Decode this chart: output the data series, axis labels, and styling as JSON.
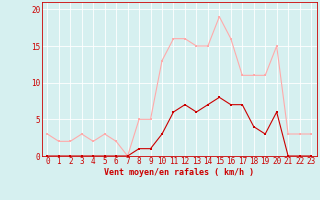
{
  "x": [
    0,
    1,
    2,
    3,
    4,
    5,
    6,
    7,
    8,
    9,
    10,
    11,
    12,
    13,
    14,
    15,
    16,
    17,
    18,
    19,
    20,
    21,
    22,
    23
  ],
  "wind_avg": [
    0,
    0,
    0,
    0,
    0,
    0,
    0,
    0,
    1,
    1,
    3,
    6,
    7,
    6,
    7,
    8,
    7,
    7,
    4,
    3,
    6,
    0,
    0,
    0
  ],
  "wind_gust": [
    3,
    2,
    2,
    3,
    2,
    3,
    2,
    0,
    5,
    5,
    13,
    16,
    16,
    15,
    15,
    19,
    16,
    11,
    11,
    11,
    15,
    3,
    3,
    3
  ],
  "line_avg_color": "#cc0000",
  "line_gust_color": "#ffaaaa",
  "marker_avg_color": "#cc0000",
  "marker_gust_color": "#ffaaaa",
  "bg_color": "#d6f0f0",
  "grid_color": "#ffffff",
  "xlabel": "Vent moyen/en rafales ( km/h )",
  "xlabel_color": "#cc0000",
  "tick_color": "#cc0000",
  "spine_color": "#cc0000",
  "ylim": [
    0,
    21
  ],
  "yticks": [
    0,
    5,
    10,
    15,
    20
  ],
  "xlim": [
    -0.5,
    23.5
  ],
  "tick_fontsize": 5.5,
  "xlabel_fontsize": 6.0
}
